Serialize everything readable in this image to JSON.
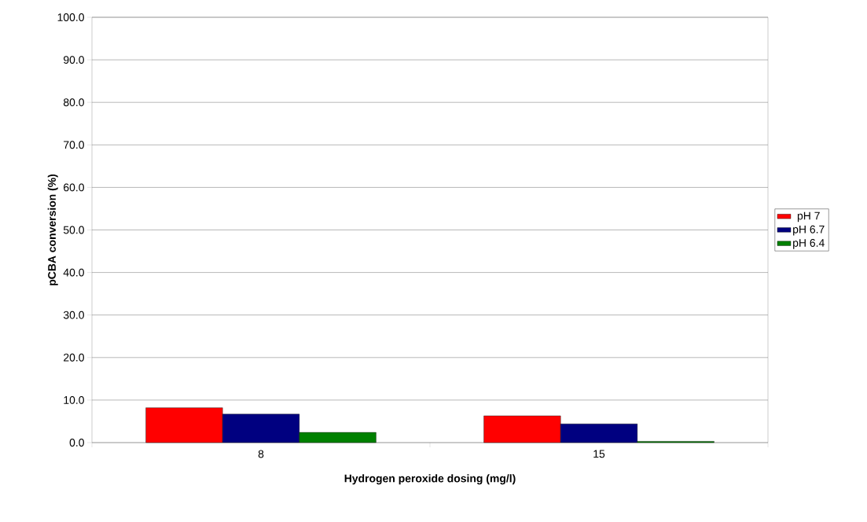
{
  "chart_data": {
    "type": "bar",
    "xlabel": "Hydrogen peroxide dosing (mg/l)",
    "ylabel": "pCBA conversion (%)",
    "categories": [
      "8",
      "15"
    ],
    "series": [
      {
        "name": "pH 7",
        "color": "#ff0000",
        "values": [
          8.2,
          6.3
        ]
      },
      {
        "name": "pH 6.7",
        "color": "#000080",
        "values": [
          6.7,
          4.4
        ]
      },
      {
        "name": "pH 6.4",
        "color": "#008000",
        "values": [
          2.4,
          0.3
        ]
      }
    ],
    "ylim": [
      0,
      100
    ],
    "yticks": [
      {
        "value": 0,
        "label": "0.0"
      },
      {
        "value": 10,
        "label": "10.0"
      },
      {
        "value": 20,
        "label": "20.0"
      },
      {
        "value": 30,
        "label": "30.0"
      },
      {
        "value": 40,
        "label": "40.0"
      },
      {
        "value": 50,
        "label": "50.0"
      },
      {
        "value": 60,
        "label": "60.0"
      },
      {
        "value": 70,
        "label": "70.0"
      },
      {
        "value": 80,
        "label": "80.0"
      },
      {
        "value": 90,
        "label": "90.0"
      },
      {
        "value": 100,
        "label": "100.0"
      }
    ],
    "grid": "y",
    "legend": "right"
  }
}
